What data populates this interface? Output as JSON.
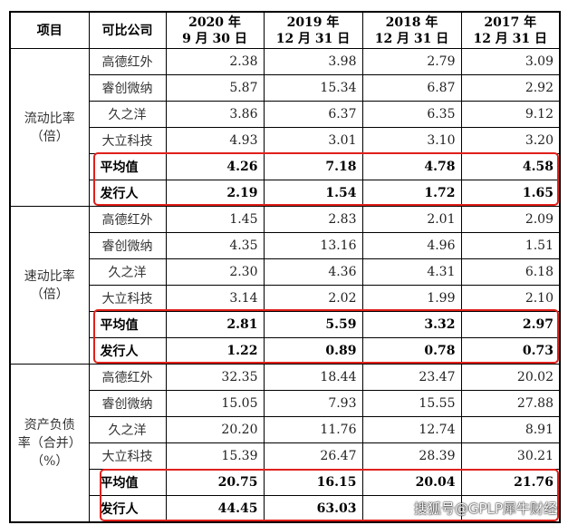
{
  "headers": [
    "项目",
    "可比公司",
    "2020 年\n9 月 30 日",
    "2019 年\n12 月 31 日",
    "2018 年\n12 月 31 日",
    "2017 年\n12 月 31 日"
  ],
  "sections": [
    {
      "item": "流动比率\n（倍）",
      "rows": [
        [
          "高德红外",
          "2.38",
          "3.98",
          "2.79",
          "3.09"
        ],
        [
          "睿创微纳",
          "5.87",
          "15.34",
          "6.87",
          "2.92"
        ],
        [
          "久之洋",
          "3.86",
          "6.37",
          "6.35",
          "9.12"
        ],
        [
          "大立科技",
          "4.93",
          "3.01",
          "3.10",
          "3.20"
        ],
        [
          "平均值",
          "4.26",
          "7.18",
          "4.78",
          "4.58"
        ],
        [
          "发行人",
          "2.19",
          "1.54",
          "1.72",
          "1.65"
        ]
      ]
    },
    {
      "item": "速动比率\n（倍）",
      "rows": [
        [
          "高德红外",
          "1.45",
          "2.83",
          "2.01",
          "2.09"
        ],
        [
          "睿创微纳",
          "4.35",
          "13.16",
          "4.96",
          "1.51"
        ],
        [
          "久之洋",
          "2.30",
          "4.36",
          "4.31",
          "6.18"
        ],
        [
          "大立科技",
          "3.14",
          "2.02",
          "1.99",
          "2.10"
        ],
        [
          "平均值",
          "2.81",
          "5.59",
          "3.32",
          "2.97"
        ],
        [
          "发行人",
          "1.22",
          "0.89",
          "0.78",
          "0.73"
        ]
      ]
    },
    {
      "item": "资产负债\n率（合并）\n（%）",
      "rows": [
        [
          "高德红外",
          "32.35",
          "18.44",
          "23.47",
          "20.02"
        ],
        [
          "睿创微纳",
          "15.05",
          "7.93",
          "15.55",
          "27.88"
        ],
        [
          "久之洋",
          "20.20",
          "11.76",
          "12.74",
          "8.91"
        ],
        [
          "大立科技",
          "15.39",
          "26.47",
          "28.39",
          "30.21"
        ],
        [
          "平均值",
          "20.75",
          "16.15",
          "20.04",
          "21.76"
        ],
        [
          "发行人",
          "44.45",
          "63.03",
          "",
          ""
        ]
      ]
    }
  ],
  "watermark": "搜狐号@GPLP犀牛财经",
  "highlight_color": "#e0201a"
}
